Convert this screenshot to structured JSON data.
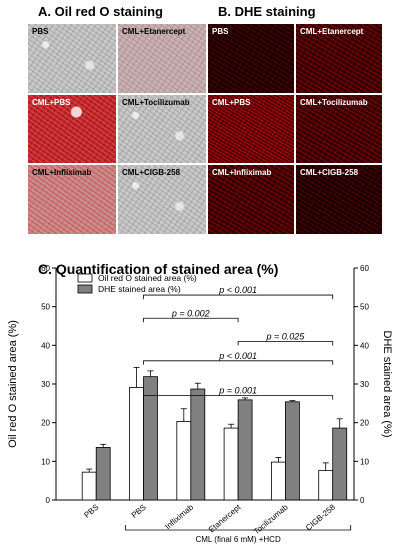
{
  "panel_a": {
    "title": "A. Oil red O  staining",
    "tiles": [
      {
        "label": "PBS",
        "intensity": "none"
      },
      {
        "label": "CML+Etanercept",
        "intensity": "mild"
      },
      {
        "label": "CML+PBS",
        "intensity": "heavy"
      },
      {
        "label": "CML+Tocilizumab",
        "intensity": "none"
      },
      {
        "label": "CML+Infliximab",
        "intensity": "med"
      },
      {
        "label": "CML+CIGB-258",
        "intensity": "none"
      }
    ]
  },
  "panel_b": {
    "title": "B. DHE staining",
    "tiles": [
      {
        "label": "PBS",
        "intensity": "dark"
      },
      {
        "label": "CML+Etanercept",
        "intensity": "mid"
      },
      {
        "label": "CML+PBS",
        "intensity": "bright"
      },
      {
        "label": "CML+Tocilizumab",
        "intensity": "mid"
      },
      {
        "label": "CML+Infliximab",
        "intensity": "mid"
      },
      {
        "label": "CML+CIGB-258",
        "intensity": "dark"
      }
    ]
  },
  "panel_c": {
    "title": "C. Quantification of stained area (%)"
  },
  "chart_data": {
    "type": "bar",
    "categories": [
      "PBS",
      "PBS",
      "Infliximab",
      "Etanercept",
      "Tocilizumab",
      "CIGB-258"
    ],
    "group_label": "CML (final 6 mM) +HCD",
    "series": [
      {
        "name": "Oil red O stained area (%)",
        "values": [
          7.2,
          29.1,
          20.3,
          18.6,
          9.8,
          7.6
        ],
        "errors": [
          0.8,
          5.2,
          3.3,
          1.0,
          1.2,
          2.0
        ],
        "color": "#ffffff"
      },
      {
        "name": "DHE stained area (%)",
        "values": [
          13.6,
          31.9,
          28.7,
          25.9,
          25.4,
          18.6
        ],
        "errors": [
          0.8,
          1.5,
          1.5,
          0.5,
          0.3,
          2.4
        ],
        "color": "#808080"
      }
    ],
    "ylabel": "Oil red O stained area (%)",
    "y2label": "DHE stained area (%)",
    "ylim": [
      0,
      60
    ],
    "y2lim": [
      0,
      60
    ],
    "yticks": [
      0,
      10,
      20,
      30,
      40,
      50,
      60
    ],
    "legend_position": "top-left",
    "comparisons": [
      {
        "from": 1,
        "to": 5,
        "level": 53,
        "label": "p < 0.001"
      },
      {
        "from": 1,
        "to": 3,
        "level": 47,
        "label": "p = 0.002"
      },
      {
        "from": 3,
        "to": 5,
        "level": 41,
        "label": "p = 0.025"
      },
      {
        "from": 1,
        "to": 5,
        "level": 36,
        "label": "p < 0.001"
      },
      {
        "from": 1,
        "to": 5,
        "level": 27,
        "label": "p = 0.001"
      }
    ]
  }
}
